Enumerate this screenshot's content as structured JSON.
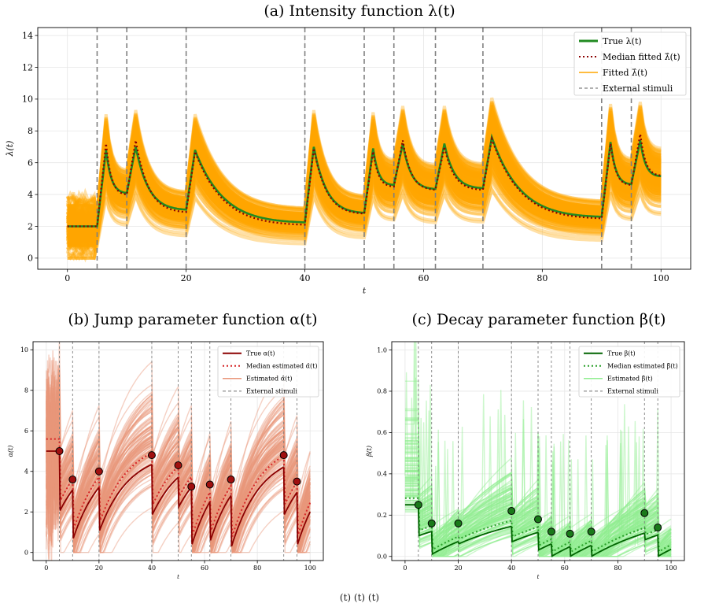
{
  "figure": {
    "caption_visible": "(t)                                                                                (t)          (t)"
  },
  "chart_data": [
    {
      "type": "line",
      "panel": "a",
      "title": "(a) Intensity function λ(t)",
      "xlabel": "t",
      "ylabel": "λ(t)",
      "xlim": [
        -5,
        105
      ],
      "ylim": [
        -0.7,
        14.5
      ],
      "xticks": [
        0,
        20,
        40,
        60,
        80,
        100
      ],
      "yticks": [
        0,
        2,
        4,
        6,
        8,
        10,
        12,
        14
      ],
      "grid": true,
      "legend_position": "top-right",
      "stimuli": [
        5,
        10,
        20,
        40,
        50,
        55,
        62,
        70,
        90,
        95
      ],
      "legend": [
        "True λ(t)",
        "Median fitted λ̂(t)",
        "Fitted λ̂(t)",
        "External stimuli"
      ],
      "colors": {
        "true": "#228b22",
        "median": "#8b0000",
        "fitted": "#ffa500",
        "stimuli": "#808080"
      },
      "series": [
        {
          "name": "True λ(t)",
          "points": [
            [
              0,
              2.0
            ],
            [
              5,
              2.0
            ],
            [
              6.5,
              6.8
            ],
            [
              10,
              4.1
            ],
            [
              11.5,
              7.0
            ],
            [
              20,
              3.05
            ],
            [
              21.5,
              6.8
            ],
            [
              40,
              2.25
            ],
            [
              41.5,
              7.0
            ],
            [
              50,
              2.85
            ],
            [
              51.5,
              6.9
            ],
            [
              55,
              4.6
            ],
            [
              56.5,
              7.2
            ],
            [
              62,
              4.35
            ],
            [
              63.5,
              7.2
            ],
            [
              70,
              4.4
            ],
            [
              71.5,
              7.6
            ],
            [
              90,
              2.6
            ],
            [
              91.5,
              7.3
            ],
            [
              95,
              4.65
            ],
            [
              96.5,
              7.4
            ],
            [
              100,
              5.15
            ]
          ]
        },
        {
          "name": "Median fitted λ̂(t)",
          "points": [
            [
              0,
              2.0
            ],
            [
              5,
              2.0
            ],
            [
              6.5,
              7.2
            ],
            [
              10,
              4.0
            ],
            [
              11.5,
              7.4
            ],
            [
              20,
              2.9
            ],
            [
              21.5,
              6.7
            ],
            [
              40,
              2.1
            ],
            [
              41.5,
              6.9
            ],
            [
              50,
              2.8
            ],
            [
              51.5,
              6.7
            ],
            [
              55,
              4.5
            ],
            [
              56.5,
              7.4
            ],
            [
              62,
              4.3
            ],
            [
              63.5,
              7.0
            ],
            [
              70,
              4.3
            ],
            [
              71.5,
              7.5
            ],
            [
              90,
              2.5
            ],
            [
              91.5,
              7.2
            ],
            [
              95,
              4.6
            ],
            [
              96.5,
              7.8
            ],
            [
              100,
              5.2
            ]
          ]
        }
      ]
    },
    {
      "type": "line",
      "panel": "b",
      "title": "(b) Jump parameter function α(t)",
      "xlabel": "t",
      "ylabel": "α(t)",
      "xlim": [
        -5,
        105
      ],
      "ylim": [
        -0.4,
        10.4
      ],
      "xticks": [
        0,
        20,
        40,
        60,
        80,
        100
      ],
      "yticks": [
        0,
        2,
        4,
        6,
        8,
        10
      ],
      "grid": true,
      "legend_position": "top-right",
      "stimuli": [
        5,
        10,
        20,
        40,
        50,
        55,
        62,
        70,
        90,
        95
      ],
      "legend": [
        "True α(t)",
        "Median estimated α̂(t)",
        "Estimated α̂(t)",
        "External stimuli"
      ],
      "colors": {
        "true": "#8b0000",
        "median": "#d62728",
        "fitted": "#e9967a",
        "stimuli": "#808080",
        "marker": "#a01010"
      },
      "true_segments": [
        {
          "x0": 0,
          "x1": 5,
          "y0": 5.0,
          "yinf": 5.0
        },
        {
          "x0": 5,
          "x1": 10,
          "y0": 2.0,
          "yinf": 5.0
        },
        {
          "x0": 10,
          "x1": 20,
          "y0": 0.6,
          "yinf": 5.0
        },
        {
          "x0": 20,
          "x1": 40,
          "y0": 1.0,
          "yinf": 5.0
        },
        {
          "x0": 40,
          "x1": 50,
          "y0": 1.8,
          "yinf": 5.0
        },
        {
          "x0": 50,
          "x1": 55,
          "y0": 2.2,
          "yinf": 5.0
        },
        {
          "x0": 55,
          "x1": 62,
          "y0": 0.3,
          "yinf": 5.0
        },
        {
          "x0": 62,
          "x1": 70,
          "y0": 0.5,
          "yinf": 5.0
        },
        {
          "x0": 70,
          "x1": 90,
          "y0": 0.2,
          "yinf": 5.0
        },
        {
          "x0": 90,
          "x1": 95,
          "y0": 1.8,
          "yinf": 5.0
        },
        {
          "x0": 95,
          "x1": 100,
          "y0": 0.3,
          "yinf": 5.0
        }
      ],
      "markers": [
        [
          5,
          5.0
        ],
        [
          10,
          3.6
        ],
        [
          20,
          4.0
        ],
        [
          40,
          4.8
        ],
        [
          50,
          4.3
        ],
        [
          55,
          3.25
        ],
        [
          62,
          3.35
        ],
        [
          70,
          3.6
        ],
        [
          90,
          4.8
        ],
        [
          95,
          3.5
        ]
      ]
    },
    {
      "type": "line",
      "panel": "c",
      "title": "(c) Decay parameter function β(t)",
      "xlabel": "t",
      "ylabel": "β(t)",
      "xlim": [
        -5,
        105
      ],
      "ylim": [
        -0.02,
        1.04
      ],
      "xticks": [
        0,
        20,
        40,
        60,
        80,
        100
      ],
      "yticks": [
        0.0,
        0.2,
        0.4,
        0.6,
        0.8,
        1.0
      ],
      "grid": true,
      "legend_position": "top-right",
      "stimuli": [
        5,
        10,
        20,
        40,
        50,
        55,
        62,
        70,
        90,
        95
      ],
      "legend": [
        "True β(t)",
        "Median estimated β̂(t)",
        "Estimated β̂(t)",
        "External stimuli"
      ],
      "colors": {
        "true": "#006400",
        "median": "#2ca02c",
        "fitted": "#90ee90",
        "stimuli": "#808080",
        "marker": "#1a7a1a"
      },
      "true_segments": [
        {
          "x0": 0,
          "x1": 5,
          "y0": 0.25,
          "yinf": 0.25
        },
        {
          "x0": 5,
          "x1": 10,
          "y0": 0.1,
          "yinf": 0.25
        },
        {
          "x0": 10,
          "x1": 20,
          "y0": 0.01,
          "yinf": 0.25
        },
        {
          "x0": 20,
          "x1": 40,
          "y0": 0.06,
          "yinf": 0.25
        },
        {
          "x0": 40,
          "x1": 50,
          "y0": 0.07,
          "yinf": 0.25
        },
        {
          "x0": 50,
          "x1": 55,
          "y0": 0.03,
          "yinf": 0.25
        },
        {
          "x0": 55,
          "x1": 62,
          "y0": 0.0,
          "yinf": 0.25
        },
        {
          "x0": 62,
          "x1": 70,
          "y0": 0.0,
          "yinf": 0.25
        },
        {
          "x0": 70,
          "x1": 90,
          "y0": 0.0,
          "yinf": 0.25
        },
        {
          "x0": 90,
          "x1": 95,
          "y0": 0.08,
          "yinf": 0.25
        },
        {
          "x0": 95,
          "x1": 100,
          "y0": 0.0,
          "yinf": 0.25
        }
      ],
      "markers": [
        [
          5,
          0.25
        ],
        [
          10,
          0.16
        ],
        [
          20,
          0.16
        ],
        [
          40,
          0.22
        ],
        [
          50,
          0.18
        ],
        [
          55,
          0.12
        ],
        [
          62,
          0.11
        ],
        [
          70,
          0.12
        ],
        [
          90,
          0.21
        ],
        [
          95,
          0.14
        ]
      ]
    }
  ]
}
